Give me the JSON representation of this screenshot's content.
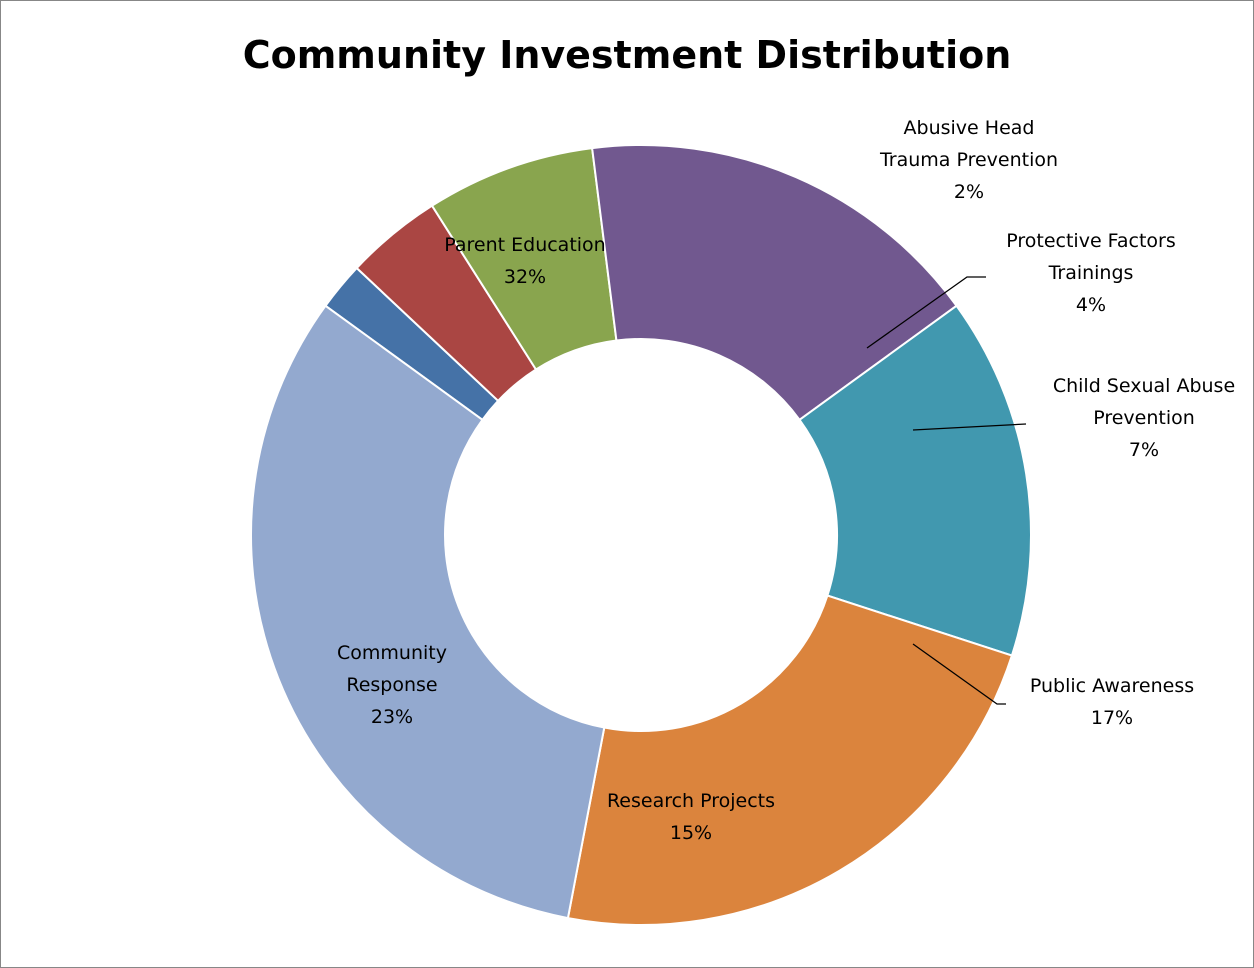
{
  "chart_data": {
    "type": "pie",
    "variant": "donut",
    "title": "Community Investment Distribution",
    "slices": [
      {
        "label_lines": [
          "Abusive Head",
          "Trauma Prevention"
        ],
        "value": 2,
        "value_label": "2%",
        "color": "#4572A7"
      },
      {
        "label_lines": [
          "Protective Factors",
          "Trainings"
        ],
        "value": 4,
        "value_label": "4%",
        "color": "#AA4643"
      },
      {
        "label_lines": [
          "Child Sexual Abuse",
          "Prevention"
        ],
        "value": 7,
        "value_label": "7%",
        "color": "#89A54E"
      },
      {
        "label_lines": [
          "Public Awareness"
        ],
        "value": 17,
        "value_label": "17%",
        "color": "#71588F"
      },
      {
        "label_lines": [
          "Research Projects"
        ],
        "value": 15,
        "value_label": "15%",
        "color": "#4198AF"
      },
      {
        "label_lines": [
          "Community",
          "Response"
        ],
        "value": 23,
        "value_label": "23%",
        "color": "#DB843D"
      },
      {
        "label_lines": [
          "Parent Education"
        ],
        "value": 32,
        "value_label": "32%",
        "color": "#93A9CF"
      }
    ],
    "legend": "none",
    "labels": "data labels with leader lines for small slices"
  }
}
